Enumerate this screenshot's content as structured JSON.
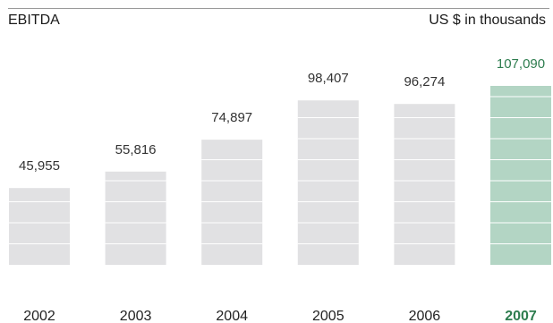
{
  "chart_data": {
    "type": "bar",
    "title": "EBITDA",
    "unit_label": "US $ in thousands",
    "categories": [
      "2002",
      "2003",
      "2004",
      "2005",
      "2006",
      "2007"
    ],
    "values": [
      45955,
      55816,
      74897,
      98407,
      96274,
      107090
    ],
    "value_labels": [
      "45,955",
      "55,816",
      "74,897",
      "98,407",
      "96,274",
      "107,090"
    ],
    "highlight_index": 5,
    "grid": false,
    "legend": "none"
  },
  "colors": {
    "bar": "#e1e1e3",
    "bar_highlight": "#b3d5c4",
    "highlight_text": "#2e7d4f",
    "band_line": "#ffffff",
    "rule": "#9a9a9a"
  }
}
